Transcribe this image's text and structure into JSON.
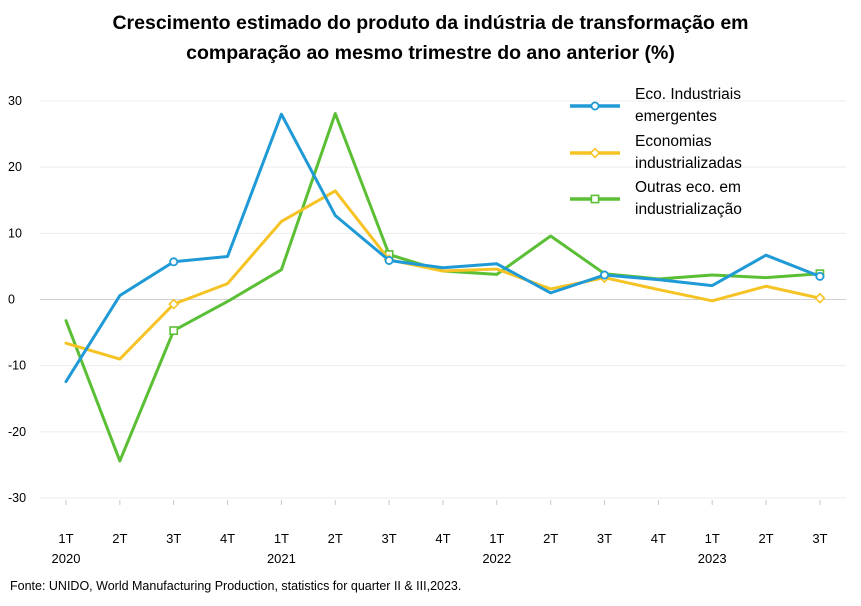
{
  "title_lines": [
    "Crescimento estimado do produto da indústria de transformação em",
    "comparação ao mesmo trimestre do ano anterior (%)"
  ],
  "source": "Fonte: UNIDO, World Manufacturing Production, statistics for quarter II & III,2023.",
  "chart_data": {
    "type": "line",
    "title": "Crescimento estimado do produto da indústria de transformação em comparação ao mesmo trimestre do ano anterior (%)",
    "x_quarters": [
      "1T",
      "2T",
      "3T",
      "4T",
      "1T",
      "2T",
      "3T",
      "4T",
      "1T",
      "2T",
      "3T",
      "4T",
      "1T",
      "2T",
      "3T"
    ],
    "x_years": [
      "2020",
      "",
      "",
      "",
      "2021",
      "",
      "",
      "",
      "2022",
      "",
      "",
      "",
      "2023",
      "",
      ""
    ],
    "ylim": [
      -30,
      30
    ],
    "yticks": [
      30,
      20,
      10,
      0,
      -10,
      -20,
      -30
    ],
    "grid": true,
    "legend_position": "top-right",
    "series": [
      {
        "name": "Eco. Industriais emergentes",
        "legend_lines": [
          "Eco. Industriais",
          "emergentes"
        ],
        "color": "#1f9ad6",
        "marker": "circle",
        "marker_indices": [
          2,
          6,
          10,
          14
        ],
        "values": [
          -12.4,
          0.6,
          5.7,
          6.5,
          28.0,
          12.7,
          5.9,
          4.8,
          5.4,
          1.0,
          3.7,
          3.0,
          2.1,
          6.7,
          3.5
        ]
      },
      {
        "name": "Economias industrializadas",
        "legend_lines": [
          "Economias",
          "industrializadas"
        ],
        "color": "#f5c324",
        "marker": "diamond",
        "marker_indices": [
          2,
          6,
          10,
          14
        ],
        "values": [
          -6.6,
          -9.0,
          -0.7,
          2.4,
          11.8,
          16.4,
          6.0,
          4.3,
          4.6,
          1.6,
          3.3,
          1.5,
          -0.2,
          2.0,
          0.2
        ]
      },
      {
        "name": "Outras eco. em industrialização",
        "legend_lines": [
          "Outras eco.  em",
          "industrialização"
        ],
        "color": "#5bbf35",
        "marker": "square",
        "marker_indices": [
          2,
          6,
          14
        ],
        "values": [
          -3.2,
          -24.4,
          -4.7,
          -0.3,
          4.5,
          28.1,
          6.8,
          4.3,
          3.8,
          9.6,
          3.9,
          3.1,
          3.7,
          3.3,
          3.9
        ]
      }
    ]
  }
}
